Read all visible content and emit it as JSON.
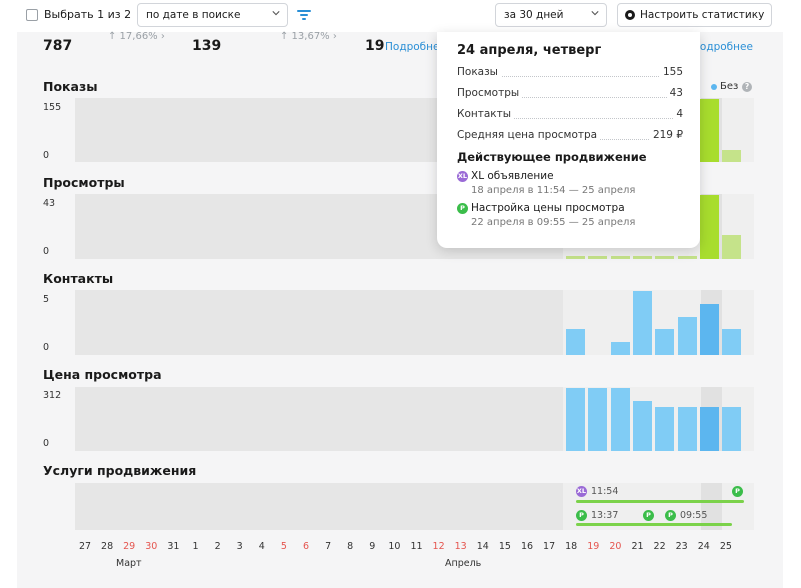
{
  "toolbar": {
    "select_all_label": "Выбрать 1 из 2",
    "sort_value": "по дате в поиске",
    "period_value": "за 30 дней",
    "settings_label": "Настроить статистику"
  },
  "kpis": {
    "views_value": "787",
    "views_delta": "↑ 17,66% ›",
    "contacts_value": "139",
    "contacts_delta": "↑ 13,67% ›",
    "third_value": "19",
    "more_link": "Подробнее",
    "more_link_right": "Подробнее"
  },
  "legend": {
    "label": "Без",
    "help": "?"
  },
  "sections": [
    {
      "title": "Показы",
      "ymax": "155",
      "ymin": "0"
    },
    {
      "title": "Просмотры",
      "ymax": "43",
      "ymin": "0"
    },
    {
      "title": "Контакты",
      "ymax": "5",
      "ymin": "0"
    },
    {
      "title": "Цена просмотра",
      "ymax": "312",
      "ymin": "0"
    },
    {
      "title": "Услуги продвижения"
    }
  ],
  "promo_times": [
    "11:54",
    "13:37",
    "09:55"
  ],
  "promo_badges": [
    "XL",
    "P"
  ],
  "x_days": [
    {
      "d": "27",
      "w": false
    },
    {
      "d": "28",
      "w": false
    },
    {
      "d": "29",
      "w": true
    },
    {
      "d": "30",
      "w": true
    },
    {
      "d": "31",
      "w": false
    },
    {
      "d": "1",
      "w": false
    },
    {
      "d": "2",
      "w": false
    },
    {
      "d": "3",
      "w": false
    },
    {
      "d": "4",
      "w": false
    },
    {
      "d": "5",
      "w": true
    },
    {
      "d": "6",
      "w": true
    },
    {
      "d": "7",
      "w": false
    },
    {
      "d": "8",
      "w": false
    },
    {
      "d": "9",
      "w": false
    },
    {
      "d": "10",
      "w": false
    },
    {
      "d": "11",
      "w": false
    },
    {
      "d": "12",
      "w": true
    },
    {
      "d": "13",
      "w": true
    },
    {
      "d": "14",
      "w": false
    },
    {
      "d": "15",
      "w": false
    },
    {
      "d": "16",
      "w": false
    },
    {
      "d": "17",
      "w": false
    },
    {
      "d": "18",
      "w": false
    },
    {
      "d": "19",
      "w": true
    },
    {
      "d": "20",
      "w": true
    },
    {
      "d": "21",
      "w": false
    },
    {
      "d": "22",
      "w": false
    },
    {
      "d": "23",
      "w": false
    },
    {
      "d": "24",
      "w": false
    },
    {
      "d": "25",
      "w": false
    }
  ],
  "months": [
    "Март",
    "Апрель"
  ],
  "chart_data": [
    {
      "type": "bar",
      "title": "Показы",
      "categories": [
        "18",
        "19",
        "20",
        "21",
        "22",
        "23",
        "24",
        "25"
      ],
      "series": [
        {
          "values": [
            null,
            null,
            null,
            null,
            null,
            null,
            155,
            30
          ]
        }
      ],
      "ylim": [
        0,
        155
      ]
    },
    {
      "type": "bar",
      "title": "Просмотры",
      "categories": [
        "18",
        "19",
        "20",
        "21",
        "22",
        "23",
        "24",
        "25"
      ],
      "series": [
        {
          "values": [
            2,
            2,
            2,
            2,
            2,
            2,
            43,
            16
          ]
        }
      ],
      "ylim": [
        0,
        43
      ]
    },
    {
      "type": "bar",
      "title": "Контакты",
      "categories": [
        "18",
        "19",
        "20",
        "21",
        "22",
        "23",
        "24",
        "25"
      ],
      "series": [
        {
          "values": [
            2,
            0,
            1,
            5,
            2,
            3,
            4,
            2
          ]
        }
      ],
      "ylim": [
        0,
        5
      ]
    },
    {
      "type": "bar",
      "title": "Цена просмотра",
      "categories": [
        "18",
        "19",
        "20",
        "21",
        "22",
        "23",
        "24",
        "25"
      ],
      "series": [
        {
          "values": [
            312,
            312,
            312,
            250,
            219,
            219,
            219,
            219
          ]
        }
      ],
      "ylim": [
        0,
        312
      ]
    }
  ],
  "tooltip": {
    "title": "24 апреля, четверг",
    "rows": [
      {
        "label": "Показы",
        "value": "155"
      },
      {
        "label": "Просмотры",
        "value": "43"
      },
      {
        "label": "Контакты",
        "value": "4"
      },
      {
        "label": "Средняя цена просмотра",
        "value": "219 ₽"
      }
    ],
    "promo_title": "Действующее продвижение",
    "promos": [
      {
        "badge": "XL",
        "name": "XL объявление",
        "period": "18 апреля в 11:54 — 25 апреля"
      },
      {
        "badge": "P",
        "name": "Настройка цены просмотра",
        "period": "22 апреля в 09:55 — 25 апреля"
      }
    ]
  },
  "colors": {
    "blue": "#80ccf5",
    "blue_selected": "#5cb6ef",
    "green": "#a8dd2e",
    "light_green": "#c5e38a",
    "weekend": "#e5554f",
    "link": "#2a8fd6"
  }
}
